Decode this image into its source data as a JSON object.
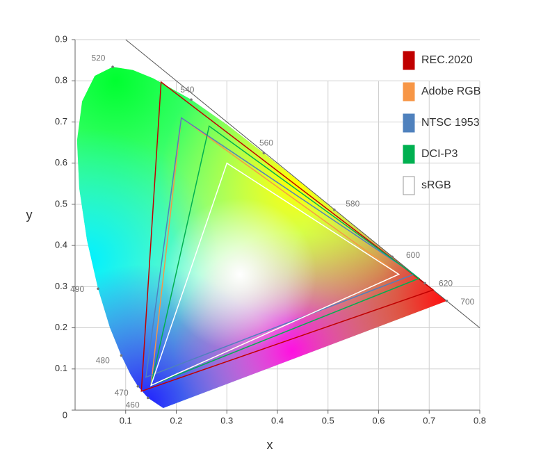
{
  "chart_data": {
    "type": "gamut",
    "x_label": "x",
    "y_label": "y",
    "xlim": [
      0,
      0.8
    ],
    "ylim": [
      0,
      0.9
    ],
    "xticks": [
      0.1,
      0.2,
      0.3,
      0.4,
      0.5,
      0.6,
      0.7,
      0.8
    ],
    "yticks": [
      0,
      0.1,
      0.2,
      0.3,
      0.4,
      0.5,
      0.6,
      0.7,
      0.8,
      0.9
    ],
    "grid": true,
    "legend": "upper right",
    "locus": {
      "x": [
        0.1741,
        0.144,
        0.1241,
        0.1096,
        0.0913,
        0.0687,
        0.0454,
        0.0235,
        0.0082,
        0.0039,
        0.0139,
        0.0389,
        0.0743,
        0.1142,
        0.1547,
        0.2296,
        0.3016,
        0.3731,
        0.4441,
        0.5125,
        0.5752,
        0.627,
        0.6915,
        0.7347
      ],
      "y": [
        0.005,
        0.0297,
        0.0578,
        0.0868,
        0.1327,
        0.2007,
        0.295,
        0.4127,
        0.5384,
        0.6548,
        0.7502,
        0.812,
        0.8338,
        0.8262,
        0.8059,
        0.7543,
        0.6923,
        0.6245,
        0.5547,
        0.4866,
        0.4242,
        0.3725,
        0.3083,
        0.2653
      ]
    },
    "wavelengths": {
      "labels": [
        "460",
        "470",
        "480",
        "490",
        "520",
        "540",
        "560",
        "580",
        "600",
        "620",
        "700"
      ],
      "x": [
        0.144,
        0.1241,
        0.0913,
        0.0454,
        0.0743,
        0.2296,
        0.3731,
        0.5125,
        0.627,
        0.6915,
        0.7347
      ],
      "y": [
        0.0297,
        0.0578,
        0.1327,
        0.295,
        0.8338,
        0.7543,
        0.6245,
        0.4866,
        0.3725,
        0.3083,
        0.2653
      ]
    },
    "reference_line": {
      "x": [
        0.1,
        0.8
      ],
      "y": [
        0.9,
        0.2
      ]
    },
    "series": [
      {
        "name": "REC.2020",
        "color": "#c00000",
        "x": [
          0.708,
          0.17,
          0.131
        ],
        "y": [
          0.292,
          0.797,
          0.046
        ]
      },
      {
        "name": "Adobe RGB",
        "color": "#f79646",
        "x": [
          0.64,
          0.21,
          0.15
        ],
        "y": [
          0.33,
          0.71,
          0.06
        ]
      },
      {
        "name": "NTSC 1953",
        "color": "#4f81bd",
        "x": [
          0.67,
          0.21,
          0.14
        ],
        "y": [
          0.33,
          0.71,
          0.08
        ]
      },
      {
        "name": "DCI-P3",
        "color": "#00b050",
        "x": [
          0.68,
          0.265,
          0.15
        ],
        "y": [
          0.32,
          0.69,
          0.06
        ]
      },
      {
        "name": "sRGB",
        "color": "#ffffff",
        "x": [
          0.64,
          0.3,
          0.15
        ],
        "y": [
          0.33,
          0.6,
          0.06
        ]
      }
    ]
  }
}
